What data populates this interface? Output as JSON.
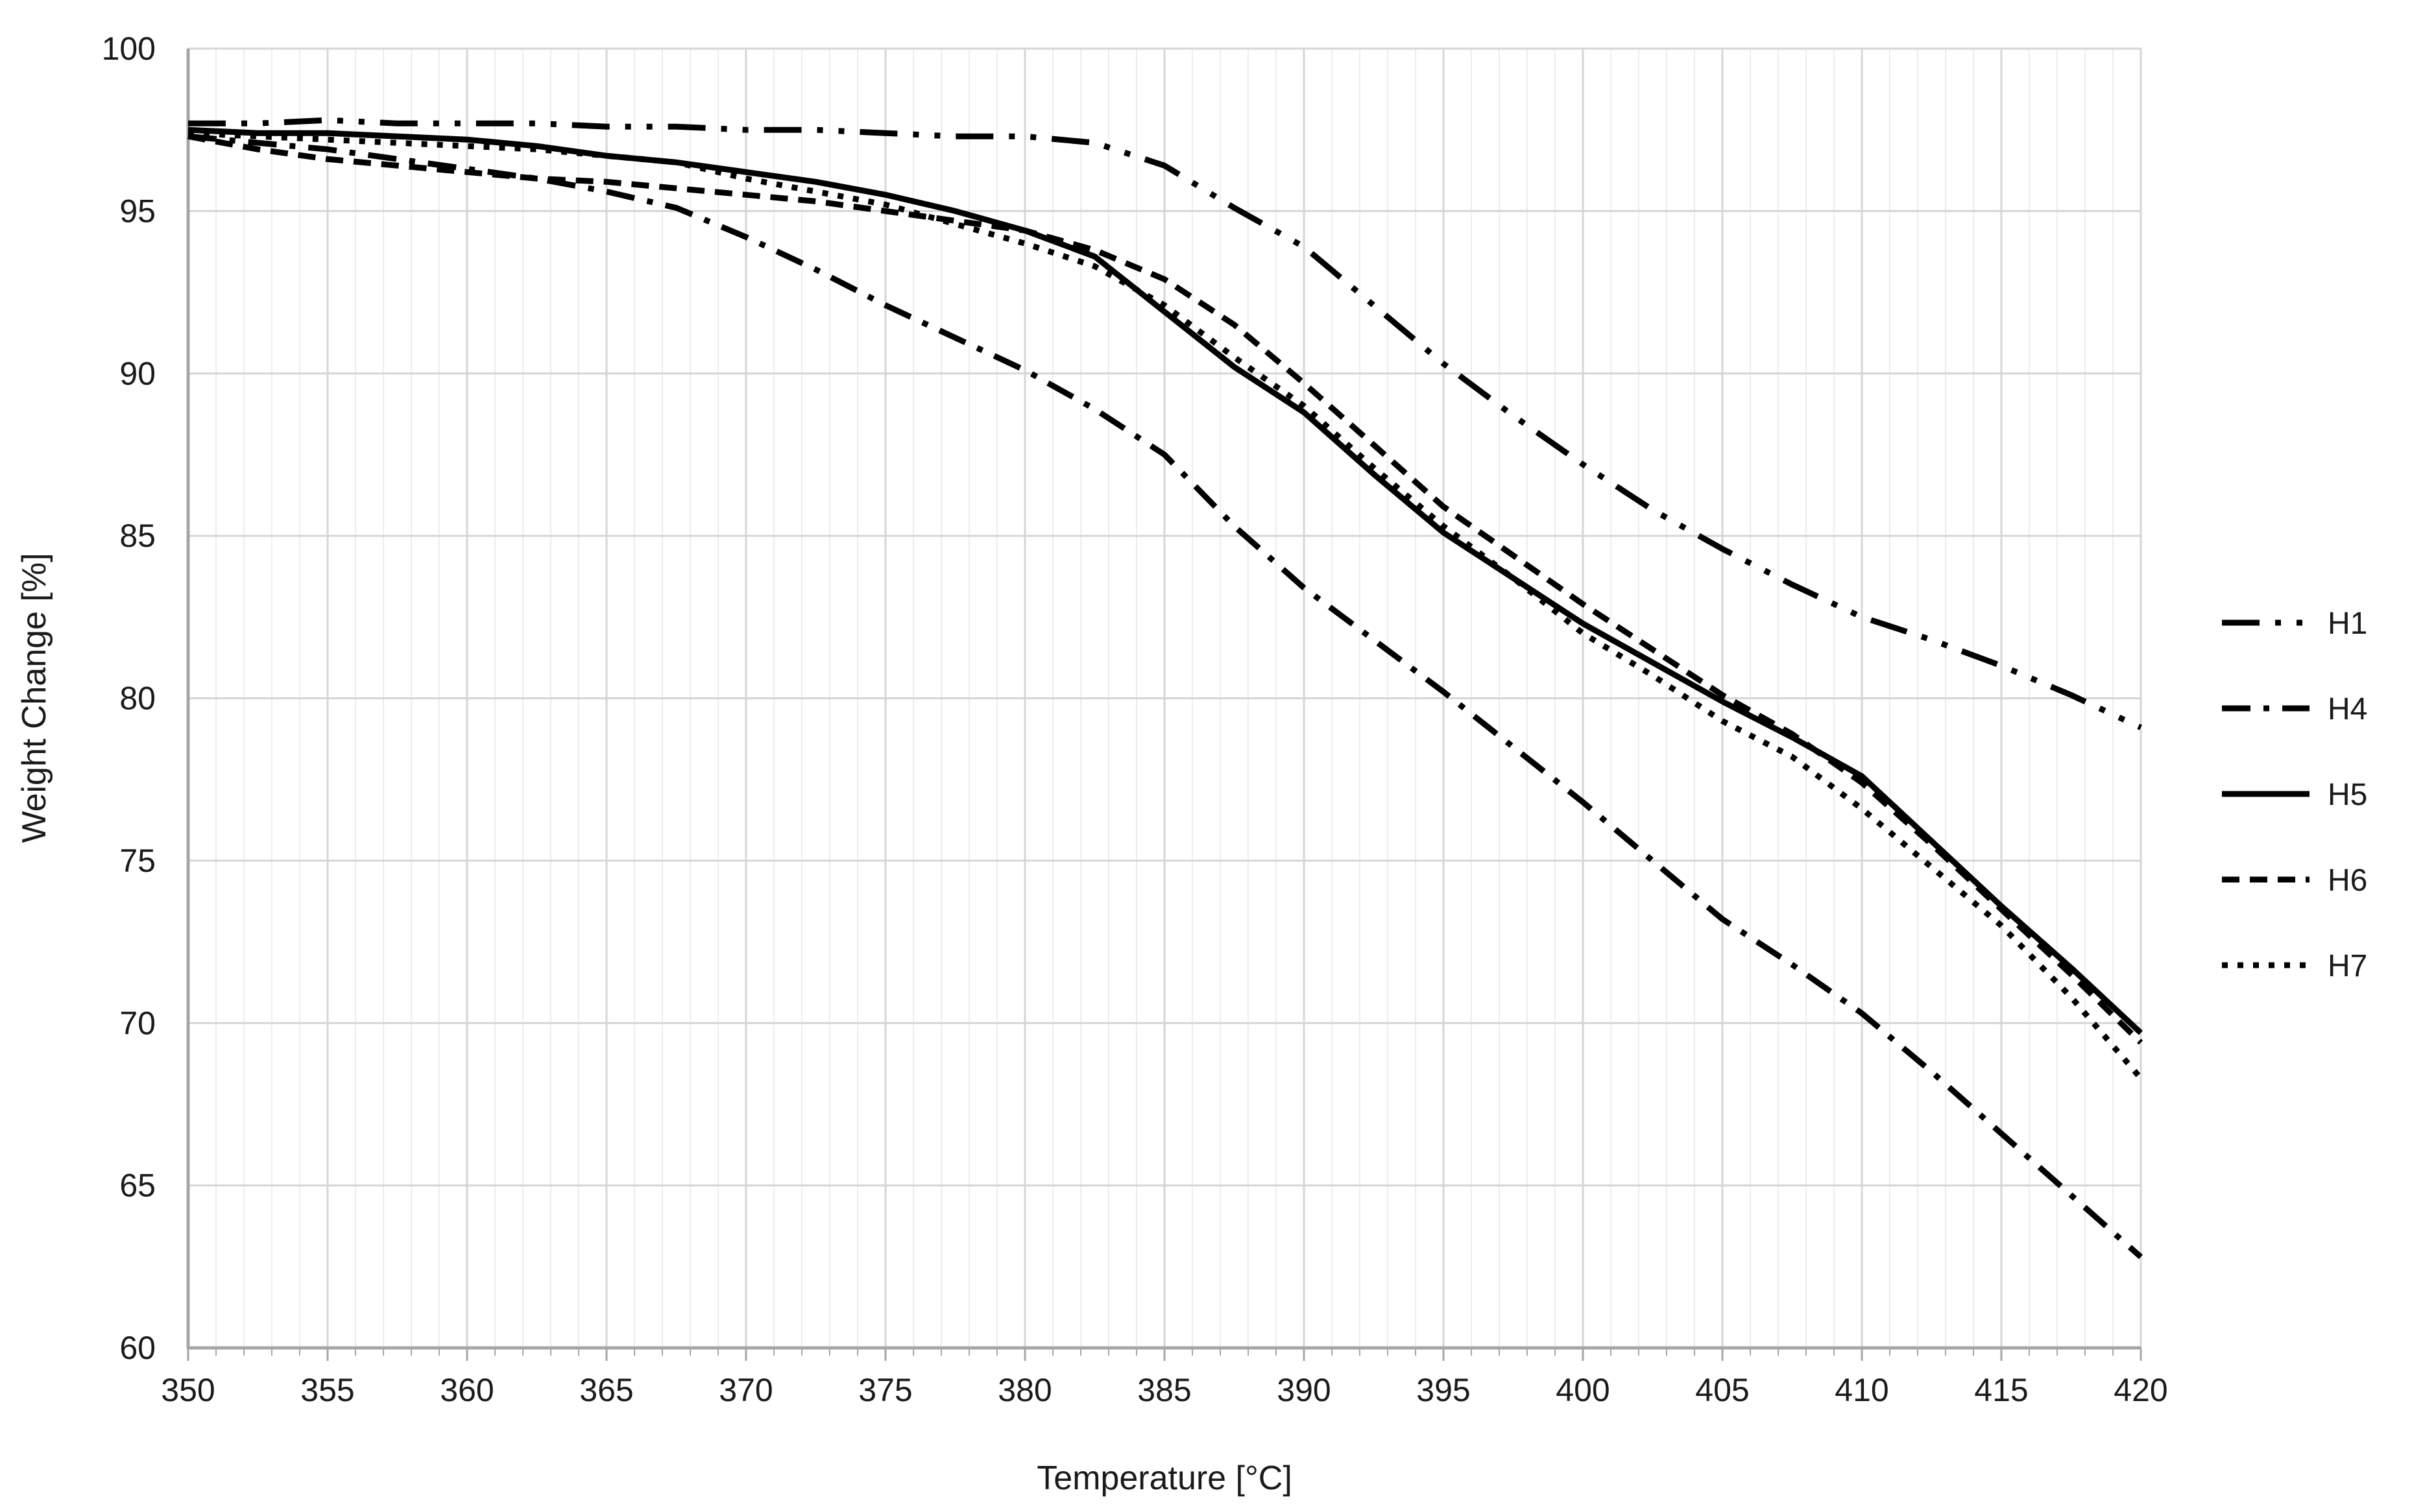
{
  "chart_data": {
    "type": "line",
    "title": "",
    "xlabel": "Temperature [°C]",
    "ylabel": "Weight Change [%]",
    "xlim": [
      350,
      420
    ],
    "ylim": [
      60,
      100
    ],
    "x_major_step": 5,
    "x_minor_step": 1,
    "y_major_step": 5,
    "x_ticks": [
      350,
      355,
      360,
      365,
      370,
      375,
      380,
      385,
      390,
      395,
      400,
      405,
      410,
      415,
      420
    ],
    "y_ticks": [
      60,
      65,
      70,
      75,
      80,
      85,
      90,
      95,
      100
    ],
    "grid": "vertical minor every 1 °C, vertical+horizontal major every 5 units, light gray",
    "legend_position": "right",
    "background_color": "#ffffff",
    "line_color": "#000000",
    "minor_grid_color": "#ededed",
    "major_grid_color": "#d6d6d6",
    "axis_color": "#a6a6a6",
    "text_color": "#1a1a1a",
    "x": [
      350,
      352.5,
      355,
      357.5,
      360,
      362.5,
      365,
      367.5,
      370,
      372.5,
      375,
      377.5,
      380,
      382.5,
      385,
      387.5,
      390,
      392.5,
      395,
      397.5,
      400,
      402.5,
      405,
      407.5,
      410,
      412.5,
      415,
      417.5,
      420
    ],
    "series": [
      {
        "name": "H1",
        "line_style": "long-dash-dot-dot",
        "dash": "58 24 9 24 9 24",
        "values": [
          97.7,
          97.7,
          97.8,
          97.7,
          97.7,
          97.7,
          97.6,
          97.6,
          97.5,
          97.5,
          97.4,
          97.3,
          97.3,
          97.1,
          96.4,
          95.1,
          93.9,
          92.1,
          90.3,
          88.7,
          87.2,
          85.8,
          84.6,
          83.5,
          82.5,
          81.8,
          81.0,
          80.1,
          79.1
        ]
      },
      {
        "name": "H4",
        "line_style": "dash-dot",
        "dash": "44 20 9 20",
        "values": [
          97.3,
          97.1,
          96.9,
          96.6,
          96.3,
          96.0,
          95.6,
          95.1,
          94.2,
          93.2,
          92.1,
          91.1,
          90.1,
          88.9,
          87.5,
          85.3,
          83.4,
          81.8,
          80.2,
          78.5,
          76.8,
          75.0,
          73.2,
          71.8,
          70.3,
          68.5,
          66.6,
          64.7,
          62.8
        ]
      },
      {
        "name": "H5",
        "line_style": "solid",
        "dash": "",
        "values": [
          97.5,
          97.4,
          97.4,
          97.3,
          97.2,
          97.0,
          96.7,
          96.5,
          96.2,
          95.9,
          95.5,
          95.0,
          94.4,
          93.6,
          91.9,
          90.2,
          88.8,
          86.9,
          85.1,
          83.7,
          82.3,
          81.1,
          79.9,
          78.8,
          77.6,
          75.6,
          73.6,
          71.7,
          69.7
        ]
      },
      {
        "name": "H6",
        "line_style": "dashed",
        "dash": "27 16",
        "values": [
          97.3,
          96.9,
          96.6,
          96.4,
          96.2,
          96.0,
          95.9,
          95.7,
          95.5,
          95.3,
          95.0,
          94.7,
          94.4,
          93.8,
          92.9,
          91.5,
          89.7,
          87.8,
          85.9,
          84.4,
          82.9,
          81.5,
          80.1,
          78.9,
          77.4,
          75.5,
          73.5,
          71.5,
          69.4
        ]
      },
      {
        "name": "H7",
        "line_style": "dotted",
        "dash": "9 15",
        "values": [
          97.4,
          97.3,
          97.2,
          97.1,
          97.0,
          96.9,
          96.7,
          96.5,
          96.0,
          95.6,
          95.2,
          94.6,
          94.0,
          93.3,
          92.1,
          90.5,
          89.0,
          87.1,
          85.3,
          83.7,
          82.0,
          80.7,
          79.3,
          78.2,
          76.6,
          74.8,
          73.0,
          70.8,
          68.3
        ]
      }
    ]
  }
}
